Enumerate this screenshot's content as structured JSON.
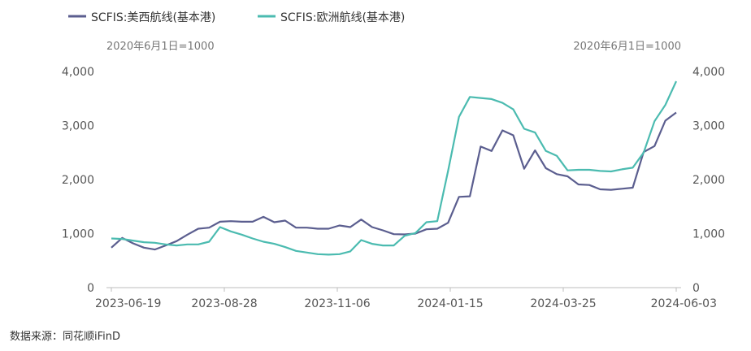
{
  "chart_data": {
    "type": "line",
    "legend_position": "top-left",
    "series": [
      {
        "name": "SCFIS:美西航线(基本港)",
        "color": "#5b5e8f",
        "axis": "left",
        "values": [
          740,
          920,
          820,
          740,
          705,
          780,
          860,
          980,
          1090,
          1110,
          1220,
          1230,
          1220,
          1220,
          1310,
          1210,
          1240,
          1110,
          1110,
          1090,
          1090,
          1150,
          1120,
          1260,
          1120,
          1060,
          990,
          985,
          1000,
          1080,
          1090,
          1200,
          1680,
          1690,
          2610,
          2530,
          2910,
          2820,
          2200,
          2540,
          2210,
          2100,
          2060,
          1910,
          1900,
          1820,
          1810,
          1830,
          1850,
          2510,
          2620,
          3090,
          3240
        ]
      },
      {
        "name": "SCFIS:欧洲航线(基本港)",
        "color": "#4bbbb0",
        "axis": "right",
        "values": [
          910,
          900,
          870,
          840,
          830,
          800,
          780,
          800,
          800,
          850,
          1120,
          1040,
          980,
          910,
          850,
          810,
          750,
          680,
          650,
          620,
          610,
          620,
          670,
          880,
          810,
          780,
          780,
          960,
          1010,
          1210,
          1230,
          2160,
          3160,
          3530,
          3510,
          3490,
          3420,
          3300,
          2940,
          2870,
          2530,
          2440,
          2170,
          2180,
          2180,
          2160,
          2150,
          2190,
          2220,
          2500,
          3080,
          3380,
          3820
        ]
      }
    ],
    "x_tick_labels": [
      "2023-06-19",
      "2023-08-28",
      "2023-11-06",
      "2024-01-15",
      "2024-03-25",
      "2024-06-03"
    ],
    "left_axis": {
      "ticks": [
        0,
        1000,
        2000,
        3000,
        4000
      ],
      "tick_labels": [
        "0",
        "1,000",
        "2,000",
        "3,000",
        "4,000"
      ],
      "ylim": [
        0,
        4000
      ],
      "note": "2020年6月1日=1000"
    },
    "right_axis": {
      "ticks": [
        0,
        1000,
        2000,
        3000,
        4000
      ],
      "tick_labels": [
        "0",
        "1,000",
        "2,000",
        "3,000",
        "4,000"
      ],
      "ylim": [
        0,
        4000
      ],
      "note": "2020年6月1日=1000"
    },
    "grid": false
  },
  "source": "数据来源：同花顺iFinD"
}
